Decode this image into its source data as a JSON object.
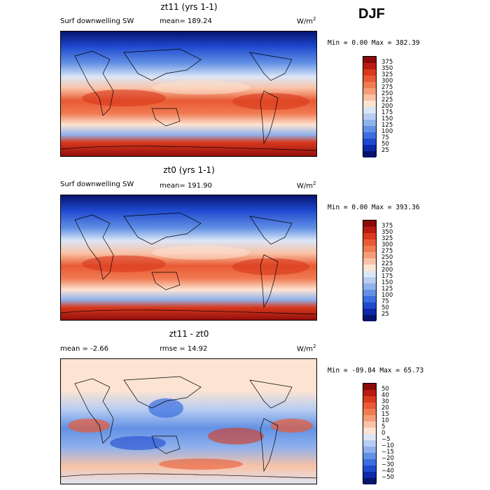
{
  "season": "DJF",
  "panels": [
    {
      "title": "zt11 (yrs 1-1)",
      "variable": "Surf downwelling SW",
      "stat": "mean= 189.24",
      "units": "W/m",
      "units_sup": "2",
      "minmax": "Min =    0.00 Max = 382.39",
      "levels": [
        "375",
        "350",
        "325",
        "300",
        "275",
        "250",
        "225",
        "200",
        "175",
        "150",
        "125",
        "100",
        "75",
        "50",
        "25"
      ],
      "colors": [
        "#8b0a0a",
        "#b81c10",
        "#d9391d",
        "#e85a33",
        "#f07a52",
        "#f59c78",
        "#f9c2a6",
        "#fde4d2",
        "#dbe6f7",
        "#b7cdf2",
        "#8fb1ec",
        "#6290e4",
        "#3b6ee0",
        "#1f49cf",
        "#0d28a8",
        "#06146e"
      ]
    },
    {
      "title": "zt0 (yrs 1-1)",
      "variable": "Surf downwelling SW",
      "stat": "mean= 191.90",
      "units": "W/m",
      "units_sup": "2",
      "minmax": "Min =    0.00 Max = 393.36",
      "levels": [
        "375",
        "350",
        "325",
        "300",
        "275",
        "250",
        "225",
        "200",
        "175",
        "150",
        "125",
        "100",
        "75",
        "50",
        "25"
      ],
      "colors": [
        "#8b0a0a",
        "#b81c10",
        "#d9391d",
        "#e85a33",
        "#f07a52",
        "#f59c78",
        "#f9c2a6",
        "#fde4d2",
        "#dbe6f7",
        "#b7cdf2",
        "#8fb1ec",
        "#6290e4",
        "#3b6ee0",
        "#1f49cf",
        "#0d28a8",
        "#06146e"
      ]
    },
    {
      "title": "zt11 - zt0",
      "stat_left": "mean =   -2.66",
      "stat": "rmse =   14.92",
      "units": "W/m",
      "units_sup": "2",
      "minmax": "Min = -89.84 Max =  65.73",
      "levels": [
        "50",
        "40",
        "30",
        "20",
        "15",
        "10",
        "5",
        "0",
        "−5",
        "−10",
        "−15",
        "−20",
        "−30",
        "−40",
        "−50"
      ],
      "colors": [
        "#8b0a0a",
        "#b81c10",
        "#d9391d",
        "#e85a33",
        "#f07a52",
        "#f59c78",
        "#f9c2a6",
        "#fde4d2",
        "#dbe6f7",
        "#b7cdf2",
        "#8fb1ec",
        "#6290e4",
        "#3b6ee0",
        "#1f49cf",
        "#0d28a8",
        "#06146e"
      ]
    }
  ]
}
